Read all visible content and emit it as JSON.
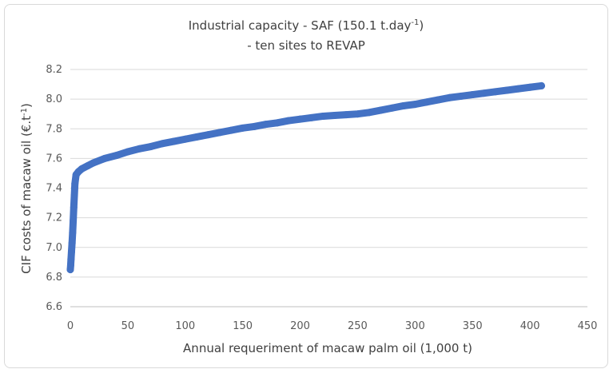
{
  "chart_data": {
    "type": "scatter",
    "title": {
      "line1_prefix": "Industrial capacity - SAF (150.1 t.day",
      "line1_superscript": "-1",
      "line1_suffix": ")",
      "line2": "- ten sites to REVAP"
    },
    "xlabel": "Annual requeriment of macaw palm oil (1,000 t)",
    "ylabel": "CIF costs of macaw oil (€.t",
    "ylabel_superscript": "-1",
    "ylabel_suffix": ")",
    "xlim": [
      0,
      450
    ],
    "ylim": [
      6.6,
      8.2
    ],
    "x_ticks": [
      "0",
      "50",
      "100",
      "150",
      "200",
      "250",
      "300",
      "350",
      "400",
      "450"
    ],
    "y_ticks": [
      "6.6",
      "6.8",
      "7.0",
      "7.2",
      "7.4",
      "7.6",
      "7.8",
      "8.0",
      "8.2"
    ],
    "grid": "horizontal",
    "legend": "none",
    "series": [
      {
        "marker_color": "#4472c4",
        "x": [
          0,
          0.3,
          0.6,
          1.0,
          1.5,
          2.0,
          2.5,
          3.0,
          3.5,
          4.0,
          5,
          7,
          10,
          15,
          20,
          30,
          40,
          50,
          60,
          70,
          80,
          90,
          100,
          110,
          120,
          130,
          140,
          150,
          160,
          170,
          180,
          190,
          200,
          210,
          220,
          230,
          240,
          250,
          260,
          270,
          280,
          290,
          300,
          310,
          320,
          330,
          340,
          350,
          360,
          370,
          380,
          390,
          400,
          410
        ],
        "y": [
          6.85,
          6.88,
          6.92,
          6.97,
          7.03,
          7.1,
          7.18,
          7.27,
          7.35,
          7.43,
          7.49,
          7.51,
          7.53,
          7.55,
          7.57,
          7.6,
          7.62,
          7.645,
          7.665,
          7.68,
          7.7,
          7.715,
          7.73,
          7.745,
          7.76,
          7.775,
          7.79,
          7.805,
          7.815,
          7.83,
          7.84,
          7.855,
          7.865,
          7.875,
          7.885,
          7.89,
          7.895,
          7.9,
          7.91,
          7.925,
          7.94,
          7.955,
          7.965,
          7.98,
          7.995,
          8.01,
          8.02,
          8.03,
          8.04,
          8.05,
          8.06,
          8.07,
          8.08,
          8.09
        ]
      }
    ]
  }
}
